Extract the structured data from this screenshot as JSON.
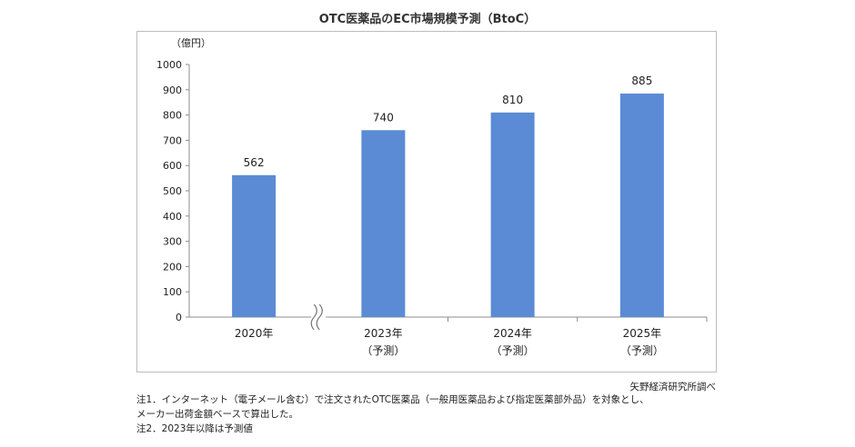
{
  "chart_data": {
    "type": "bar",
    "title": "OTC医薬品のEC市場規模予測（BtoC）",
    "ylabel": "（億円）",
    "xlabel": "",
    "ylim": [
      0,
      1000
    ],
    "yticks": [
      0,
      100,
      200,
      300,
      400,
      500,
      600,
      700,
      800,
      900,
      1000
    ],
    "categories": [
      "2020年",
      "2023年",
      "2024年",
      "2025年"
    ],
    "category_sublabels": [
      "",
      "（予測）",
      "（予測）",
      "（予測）"
    ],
    "values": [
      562,
      740,
      810,
      885
    ],
    "data_labels": [
      "562",
      "740",
      "810",
      "885"
    ],
    "axis_break_between": [
      "2020年",
      "2023年"
    ],
    "bar_color": "#5b8bd4",
    "grid": false
  },
  "source": "矢野経済研究所調べ",
  "notes": [
    "注1．インターネット（電子メール含む）で注文されたOTC医薬品（一般用医薬品および指定医薬部外品）を対象とし、",
    "メーカー出荷金額ベースで算出した。",
    "注2．2023年以降は予測値"
  ]
}
